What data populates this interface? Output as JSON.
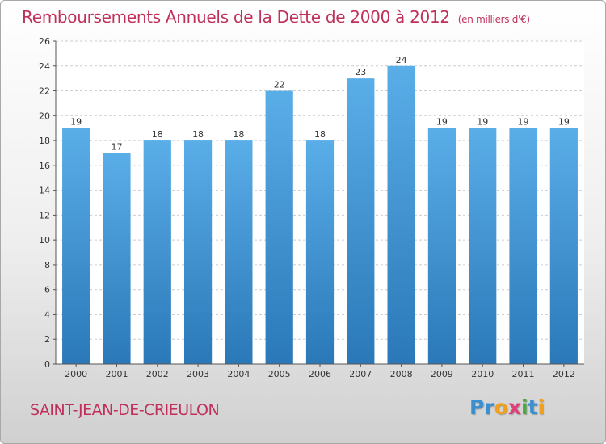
{
  "header": {
    "title": "Remboursements Annuels de la Dette de 2000 à 2012",
    "subtitle": "(en milliers d'€)"
  },
  "footer": {
    "commune": "SAINT-JEAN-DE-CRIEULON",
    "logo_letters": [
      {
        "ch": "P",
        "color": "#3a8fd0"
      },
      {
        "ch": "r",
        "color": "#3a8fd0"
      },
      {
        "ch": "o",
        "color": "#f0a020"
      },
      {
        "ch": "x",
        "color": "#e0407a"
      },
      {
        "ch": "i",
        "color": "#4aaa40"
      },
      {
        "ch": "t",
        "color": "#3a8fd0"
      },
      {
        "ch": "i",
        "color": "#f0a020"
      }
    ]
  },
  "chart_data": {
    "type": "bar",
    "title": "Remboursements Annuels de la Dette de 2000 à 2012",
    "subtitle": "(en milliers d'€)",
    "categories": [
      "2000",
      "2001",
      "2002",
      "2003",
      "2004",
      "2005",
      "2006",
      "2007",
      "2008",
      "2009",
      "2010",
      "2011",
      "2012"
    ],
    "values": [
      19,
      17,
      18,
      18,
      18,
      22,
      18,
      23,
      24,
      19,
      19,
      19,
      19
    ],
    "data_labels": [
      "19",
      "17",
      "18",
      "18",
      "18",
      "22",
      "18",
      "23",
      "24",
      "19",
      "19",
      "19",
      "19"
    ],
    "ylim": [
      0,
      26
    ],
    "yticks": [
      0,
      2,
      4,
      6,
      8,
      10,
      12,
      14,
      16,
      18,
      20,
      22,
      24,
      26
    ],
    "grid": true,
    "colors": {
      "bar_light": "#5aaee8",
      "bar_dark": "#2a78b8",
      "grid": "#cccccc",
      "plot_bg": "#ffffff"
    }
  }
}
